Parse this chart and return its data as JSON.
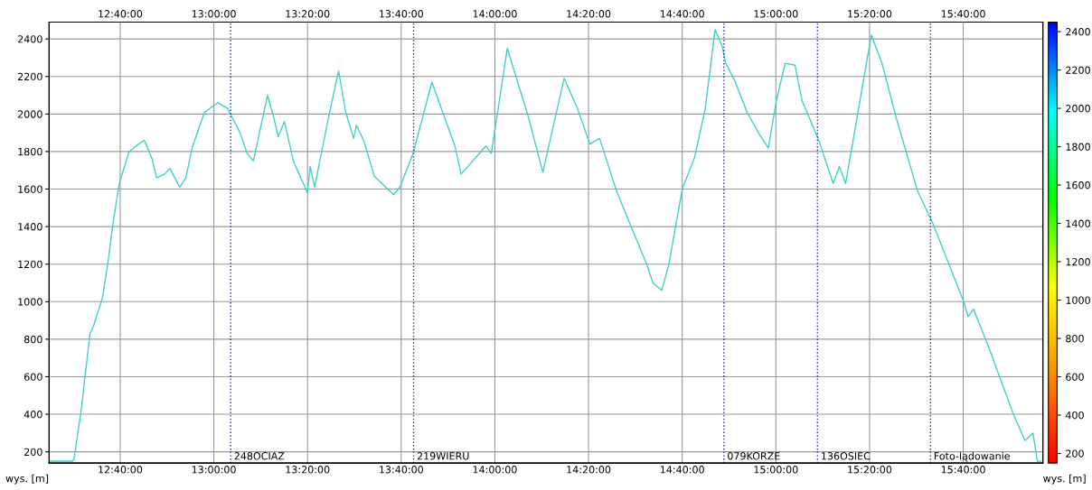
{
  "chart_data": {
    "type": "line",
    "ylabel": "wys. [m]",
    "clabel": "wys. [m]",
    "x": [
      12.4139,
      12.4961,
      12.5024,
      12.5277,
      12.5593,
      12.5719,
      12.6035,
      12.6224,
      12.6414,
      12.6635,
      12.6983,
      12.7235,
      12.752,
      12.7583,
      12.7804,
      12.7962,
      12.8246,
      12.8436,
      12.8784,
      12.9005,
      12.9226,
      12.9668,
      13.0142,
      13.049,
      13.0932,
      13.1185,
      13.1406,
      13.1912,
      13.2133,
      13.2291,
      13.2512,
      13.2828,
      13.3333,
      13.3428,
      13.3586,
      13.4092,
      13.4439,
      13.4692,
      13.4976,
      13.5071,
      13.5355,
      13.5703,
      13.6398,
      13.6619,
      13.7093,
      13.7757,
      13.8578,
      13.8799,
      13.9684,
      13.9874,
      14.0442,
      14.1201,
      14.1706,
      14.2465,
      14.2938,
      14.3381,
      14.3728,
      14.4329,
      14.4929,
      14.5403,
      14.5624,
      14.594,
      14.6193,
      14.6667,
      14.7109,
      14.7488,
      14.7836,
      14.8088,
      14.8215,
      14.8531,
      14.8973,
      14.9416,
      14.9731,
      15.0016,
      15.0332,
      15.068,
      15.0932,
      15.1501,
      15.2038,
      15.2259,
      15.2481,
      15.3397,
      15.3776,
      15.4282,
      15.504,
      15.5577,
      15.6683,
      15.6841,
      15.703,
      15.7567,
      15.8452,
      15.8863,
      15.9147,
      15.9305,
      15.9431
    ],
    "series": [
      {
        "values": [
          150,
          150,
          160,
          420,
          830,
          870,
          1020,
          1200,
          1420,
          1630,
          1800,
          1830,
          1860,
          1840,
          1760,
          1660,
          1680,
          1710,
          1610,
          1660,
          1820,
          2010,
          2060,
          2030,
          1900,
          1790,
          1750,
          2100,
          1980,
          1880,
          1960,
          1750,
          1580,
          1720,
          1610,
          1990,
          2230,
          2010,
          1870,
          1940,
          1850,
          1670,
          1570,
          1610,
          1790,
          2170,
          1830,
          1680,
          1830,
          1790,
          2350,
          1980,
          1690,
          2190,
          2030,
          1840,
          1870,
          1590,
          1370,
          1200,
          1100,
          1060,
          1200,
          1600,
          1770,
          2030,
          2450,
          2360,
          2270,
          2180,
          2010,
          1890,
          1820,
          2070,
          2270,
          2260,
          2070,
          1870,
          1630,
          1720,
          1630,
          2420,
          2270,
          1980,
          1590,
          1420,
          1000,
          920,
          960,
          760,
          400,
          260,
          300,
          150,
          150
        ]
      }
    ],
    "xlim": [
      12.4139,
      15.95
    ],
    "ylim": [
      140,
      2490
    ],
    "xticks": [
      {
        "value": 12.666667,
        "label": "12:40:00"
      },
      {
        "value": 13,
        "label": "13:00:00"
      },
      {
        "value": 13.333333,
        "label": "13:20:00"
      },
      {
        "value": 13.666667,
        "label": "13:40:00"
      },
      {
        "value": 14,
        "label": "14:00:00"
      },
      {
        "value": 14.333333,
        "label": "14:20:00"
      },
      {
        "value": 14.666667,
        "label": "14:40:00"
      },
      {
        "value": 15,
        "label": "15:00:00"
      },
      {
        "value": 15.333333,
        "label": "15:20:00"
      },
      {
        "value": 15.666667,
        "label": "15:40:00"
      }
    ],
    "x2lim": [
      12.4139,
      15.95
    ],
    "x2ticks": [
      {
        "value": 12.666667,
        "label": "12:40:00"
      },
      {
        "value": 13,
        "label": "13:00:00"
      },
      {
        "value": 13.333333,
        "label": "13:20:00"
      },
      {
        "value": 13.666667,
        "label": "13:40:00"
      },
      {
        "value": 14,
        "label": "14:00:00"
      },
      {
        "value": 14.333333,
        "label": "14:20:00"
      },
      {
        "value": 14.666667,
        "label": "14:40:00"
      },
      {
        "value": 15,
        "label": "15:00:00"
      },
      {
        "value": 15.333333,
        "label": "15:20:00"
      },
      {
        "value": 15.666667,
        "label": "15:40:00"
      }
    ],
    "yticks": [
      200,
      400,
      600,
      800,
      1000,
      1200,
      1400,
      1600,
      1800,
      2000,
      2200,
      2400
    ],
    "clim": [
      150,
      2450
    ],
    "cticks": [
      200,
      400,
      600,
      800,
      1000,
      1200,
      1400,
      1600,
      1800,
      2000,
      2200,
      2400
    ],
    "grid": true,
    "ref_lines": [
      {
        "axis": "x",
        "value": 13.06,
        "label": "248OCIAZ",
        "color": "#2b2b9e",
        "line_style": "dotted"
      },
      {
        "axis": "x",
        "value": 13.7108,
        "label": "219WIERU",
        "color": "#2b2b9e",
        "line_style": "dotted"
      },
      {
        "axis": "x",
        "value": 14.815,
        "label": "079KORZE",
        "color": "#2b2b9e",
        "line_style": "dotted"
      },
      {
        "axis": "x",
        "value": 15.148,
        "label": "136OSIEC",
        "color": "#2b2b9e",
        "line_style": "dotted"
      },
      {
        "axis": "x",
        "value": 15.55,
        "label": "Foto-lądowanie",
        "color": "#2b2b9e",
        "line_style": "dotted"
      }
    ]
  }
}
